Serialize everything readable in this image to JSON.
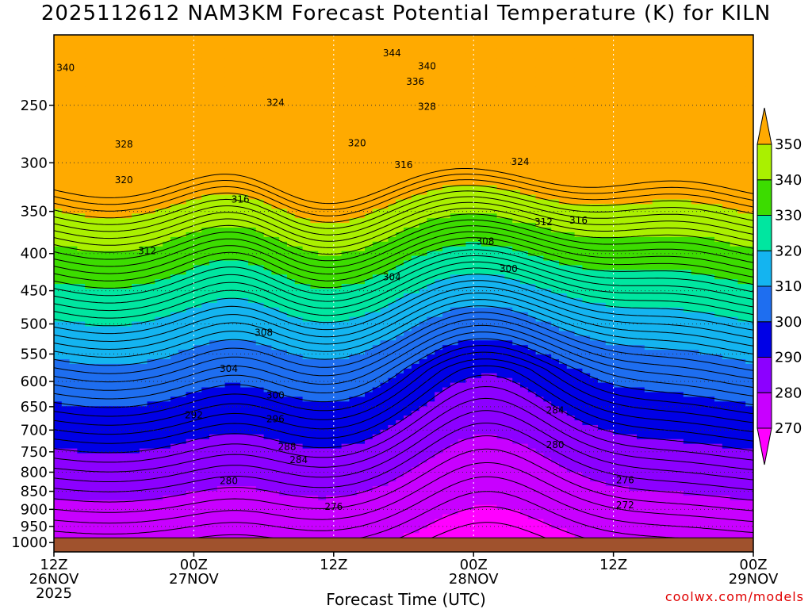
{
  "title": "2025112612 NAM3KM Forecast Potential Temperature (K) for KILN",
  "watermark": "coolwx.com/models",
  "chart_data": {
    "type": "heatmap",
    "title": "2025112612 NAM3KM Forecast Potential Temperature (K) for KILN",
    "xlabel": "Forecast Time (UTC)",
    "ylabel": "",
    "x_ticks": [
      {
        "hour": 0,
        "line1": "12Z",
        "line2": "26NOV",
        "line3": "2025"
      },
      {
        "hour": 12,
        "line1": "00Z",
        "line2": "27NOV",
        "line3": ""
      },
      {
        "hour": 24,
        "line1": "12Z",
        "line2": "",
        "line3": ""
      },
      {
        "hour": 36,
        "line1": "00Z",
        "line2": "28NOV",
        "line3": ""
      },
      {
        "hour": 48,
        "line1": "12Z",
        "line2": "",
        "line3": ""
      },
      {
        "hour": 60,
        "line1": "00Z",
        "line2": "29NOV",
        "line3": ""
      }
    ],
    "xlim": [
      0,
      60
    ],
    "y_ticks": [
      250,
      300,
      350,
      400,
      450,
      500,
      550,
      600,
      650,
      700,
      750,
      800,
      850,
      900,
      950,
      1000
    ],
    "ylim_hPa": [
      200,
      1030
    ],
    "y_scale": "log-pressure",
    "surface_pressure_hPa": 985,
    "contour_interval_K": 2,
    "colorbar": {
      "levels": [
        270,
        280,
        290,
        300,
        310,
        320,
        330,
        340,
        350
      ],
      "colors": [
        "#ff00ff",
        "#c800ff",
        "#8c00ff",
        "#0000e6",
        "#1e6ef0",
        "#14b4f0",
        "#00e6a0",
        "#3cdc00",
        "#aaf000",
        "#ffff00",
        "#ffaa00"
      ],
      "extend": "both"
    },
    "contour_labels": [
      {
        "value": 344,
        "hour": 29,
        "p": 212
      },
      {
        "value": 340,
        "hour": 1,
        "p": 222
      },
      {
        "value": 340,
        "hour": 32,
        "p": 221
      },
      {
        "value": 336,
        "hour": 31,
        "p": 232
      },
      {
        "value": 324,
        "hour": 19,
        "p": 248
      },
      {
        "value": 328,
        "hour": 32,
        "p": 251
      },
      {
        "value": 328,
        "hour": 6,
        "p": 283
      },
      {
        "value": 320,
        "hour": 26,
        "p": 282
      },
      {
        "value": 316,
        "hour": 30,
        "p": 302
      },
      {
        "value": 324,
        "hour": 40,
        "p": 299
      },
      {
        "value": 320,
        "hour": 6,
        "p": 317
      },
      {
        "value": 316,
        "hour": 16,
        "p": 337
      },
      {
        "value": 312,
        "hour": 42,
        "p": 362
      },
      {
        "value": 316,
        "hour": 45,
        "p": 360
      },
      {
        "value": 308,
        "hour": 37,
        "p": 385
      },
      {
        "value": 312,
        "hour": 8,
        "p": 397
      },
      {
        "value": 300,
        "hour": 39,
        "p": 420
      },
      {
        "value": 304,
        "hour": 29,
        "p": 431
      },
      {
        "value": 308,
        "hour": 18,
        "p": 514
      },
      {
        "value": 304,
        "hour": 15,
        "p": 576
      },
      {
        "value": 300,
        "hour": 19,
        "p": 627
      },
      {
        "value": 292,
        "hour": 12,
        "p": 668
      },
      {
        "value": 296,
        "hour": 19,
        "p": 676
      },
      {
        "value": 284,
        "hour": 43,
        "p": 658
      },
      {
        "value": 288,
        "hour": 20,
        "p": 738
      },
      {
        "value": 280,
        "hour": 43,
        "p": 734
      },
      {
        "value": 284,
        "hour": 21,
        "p": 769
      },
      {
        "value": 276,
        "hour": 49,
        "p": 820
      },
      {
        "value": 280,
        "hour": 15,
        "p": 822
      },
      {
        "value": 276,
        "hour": 24,
        "p": 893
      },
      {
        "value": 272,
        "hour": 49,
        "p": 888
      }
    ],
    "grid": true
  }
}
